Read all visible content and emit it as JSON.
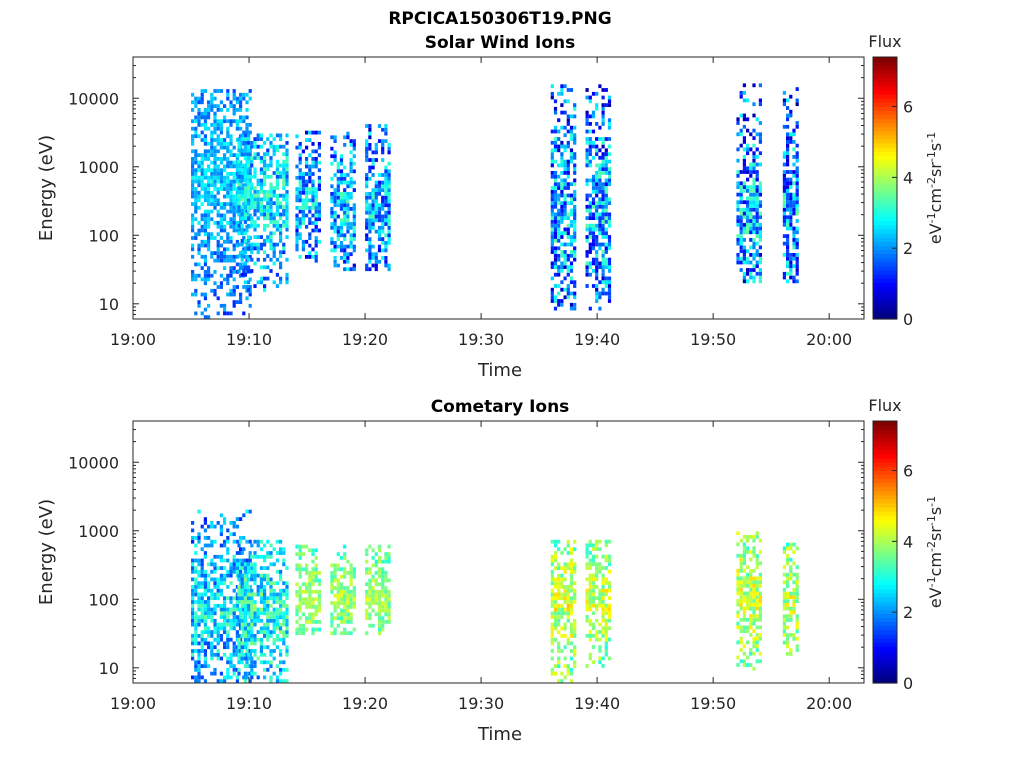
{
  "figure_title": "RPCICA150306T19.PNG",
  "colorbar": {
    "title": "Flux",
    "ticks": [
      "0",
      "2",
      "4",
      "6"
    ],
    "tick_values": [
      0,
      2,
      4,
      6
    ],
    "range": [
      0,
      7.4
    ],
    "colormap": "jet"
  },
  "chart_data": [
    {
      "type": "heatmap",
      "title": "Solar Wind Ions",
      "xlabel": "Time",
      "ylabel": "Energy (eV)",
      "x_tick_labels": [
        "19:00",
        "19:10",
        "19:20",
        "19:30",
        "19:40",
        "19:50",
        "20:00"
      ],
      "x_tick_minutes": [
        0,
        10,
        20,
        30,
        40,
        50,
        60
      ],
      "xlim_minutes": [
        0,
        63
      ],
      "y_scale": "log",
      "y_tick_labels": [
        "10",
        "100",
        "1000",
        "10000"
      ],
      "y_tick_values": [
        10,
        100,
        1000,
        10000
      ],
      "ylim": [
        6,
        40000
      ],
      "bursts": [
        {
          "t_start": 19.05,
          "t_end": 19.1,
          "e_min": 6,
          "e_max": 12000,
          "peak_energy": 600,
          "flux": 2.4,
          "spread": 0.3
        },
        {
          "t_start": 19.09,
          "t_end": 19.13,
          "e_min": 15,
          "e_max": 3000,
          "peak_energy": 400,
          "flux": 2.6,
          "spread": 0.5
        },
        {
          "t_start": 19.14,
          "t_end": 19.16,
          "e_min": 40,
          "e_max": 3000,
          "peak_energy": 300,
          "flux": 2.3,
          "spread": 0.6
        },
        {
          "t_start": 19.17,
          "t_end": 19.19,
          "e_min": 30,
          "e_max": 3000,
          "peak_energy": 250,
          "flux": 2.3,
          "spread": 0.6
        },
        {
          "t_start": 19.2,
          "t_end": 19.22,
          "e_min": 30,
          "e_max": 4000,
          "peak_energy": 250,
          "flux": 2.3,
          "spread": 0.6
        },
        {
          "t_start": 19.36,
          "t_end": 19.38,
          "e_min": 8,
          "e_max": 15000,
          "peak_energy": 200,
          "flux": 2.2,
          "spread": 0.7
        },
        {
          "t_start": 19.39,
          "t_end": 19.41,
          "e_min": 8,
          "e_max": 15000,
          "peak_energy": 200,
          "flux": 2.2,
          "spread": 0.7
        },
        {
          "t_start": 19.52,
          "t_end": 19.54,
          "e_min": 20,
          "e_max": 15000,
          "peak_energy": 200,
          "flux": 2.2,
          "spread": 0.7
        },
        {
          "t_start": 19.56,
          "t_end": 19.57,
          "e_min": 20,
          "e_max": 15000,
          "peak_energy": 200,
          "flux": 2.2,
          "spread": 0.7
        }
      ]
    },
    {
      "type": "heatmap",
      "title": "Cometary Ions",
      "xlabel": "Time",
      "ylabel": "Energy (eV)",
      "x_tick_labels": [
        "19:00",
        "19:10",
        "19:20",
        "19:30",
        "19:40",
        "19:50",
        "20:00"
      ],
      "x_tick_minutes": [
        0,
        10,
        20,
        30,
        40,
        50,
        60
      ],
      "xlim_minutes": [
        0,
        63
      ],
      "y_scale": "log",
      "y_tick_labels": [
        "10",
        "100",
        "1000",
        "10000"
      ],
      "y_tick_values": [
        10,
        100,
        1000,
        10000
      ],
      "ylim": [
        6,
        40000
      ],
      "bursts": [
        {
          "t_start": 19.05,
          "t_end": 19.1,
          "e_min": 6,
          "e_max": 2000,
          "peak_energy": 60,
          "flux": 2.6,
          "spread": 0.5
        },
        {
          "t_start": 19.09,
          "t_end": 19.13,
          "e_min": 6,
          "e_max": 700,
          "peak_energy": 60,
          "flux": 3.0,
          "spread": 0.5
        },
        {
          "t_start": 19.14,
          "t_end": 19.16,
          "e_min": 30,
          "e_max": 600,
          "peak_energy": 100,
          "flux": 4.0,
          "spread": 0.3
        },
        {
          "t_start": 19.17,
          "t_end": 19.19,
          "e_min": 30,
          "e_max": 600,
          "peak_energy": 100,
          "flux": 4.0,
          "spread": 0.3
        },
        {
          "t_start": 19.2,
          "t_end": 19.22,
          "e_min": 30,
          "e_max": 600,
          "peak_energy": 100,
          "flux": 4.0,
          "spread": 0.3
        },
        {
          "t_start": 19.36,
          "t_end": 19.38,
          "e_min": 6,
          "e_max": 700,
          "peak_energy": 80,
          "flux": 4.3,
          "spread": 0.4
        },
        {
          "t_start": 19.39,
          "t_end": 19.41,
          "e_min": 10,
          "e_max": 700,
          "peak_energy": 100,
          "flux": 4.2,
          "spread": 0.4
        },
        {
          "t_start": 19.52,
          "t_end": 19.54,
          "e_min": 8,
          "e_max": 900,
          "peak_energy": 100,
          "flux": 4.3,
          "spread": 0.4
        },
        {
          "t_start": 19.56,
          "t_end": 19.57,
          "e_min": 15,
          "e_max": 700,
          "peak_energy": 100,
          "flux": 4.2,
          "spread": 0.4
        }
      ]
    }
  ]
}
